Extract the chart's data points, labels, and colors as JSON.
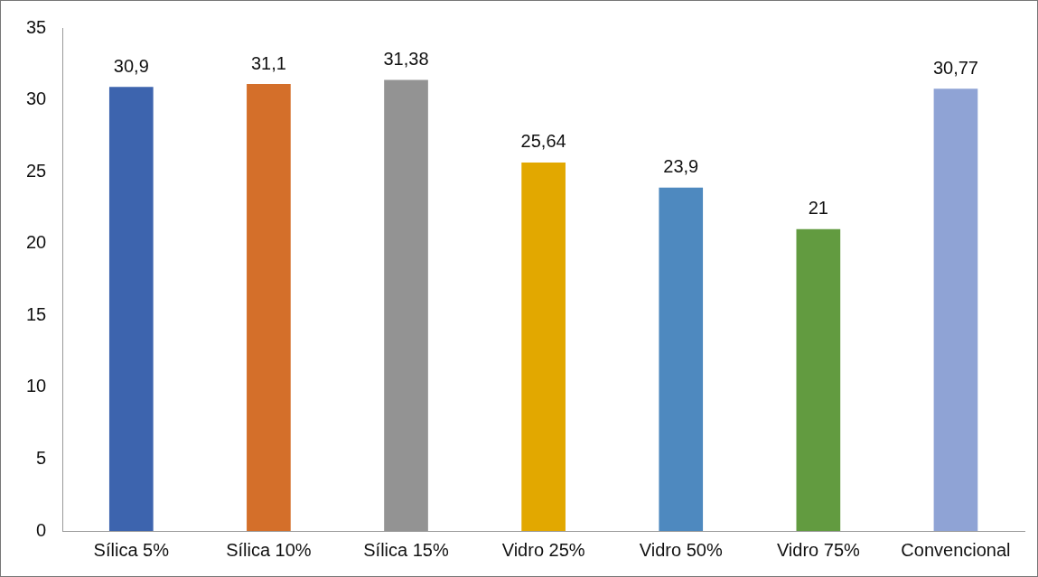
{
  "chart_data": {
    "type": "bar",
    "categories": [
      "Sílica 5%",
      "Sílica 10%",
      "Sílica 15%",
      "Vidro 25%",
      "Vidro 50%",
      "Vidro 75%",
      "Convencional"
    ],
    "values": [
      30.9,
      31.1,
      31.38,
      25.64,
      23.9,
      21,
      30.77
    ],
    "colors": [
      "#3d64ae",
      "#d46f2a",
      "#939393",
      "#e2a800",
      "#4e89bf",
      "#629b40",
      "#8fa3d5"
    ],
    "value_labels": [
      "30,9",
      "31,1",
      "31,38",
      "25,64",
      "23,9",
      "21",
      "30,77"
    ],
    "ylim": [
      0,
      35
    ],
    "yticks": [
      0,
      5,
      10,
      15,
      20,
      25,
      30,
      35
    ],
    "grid": false,
    "legend": false
  }
}
